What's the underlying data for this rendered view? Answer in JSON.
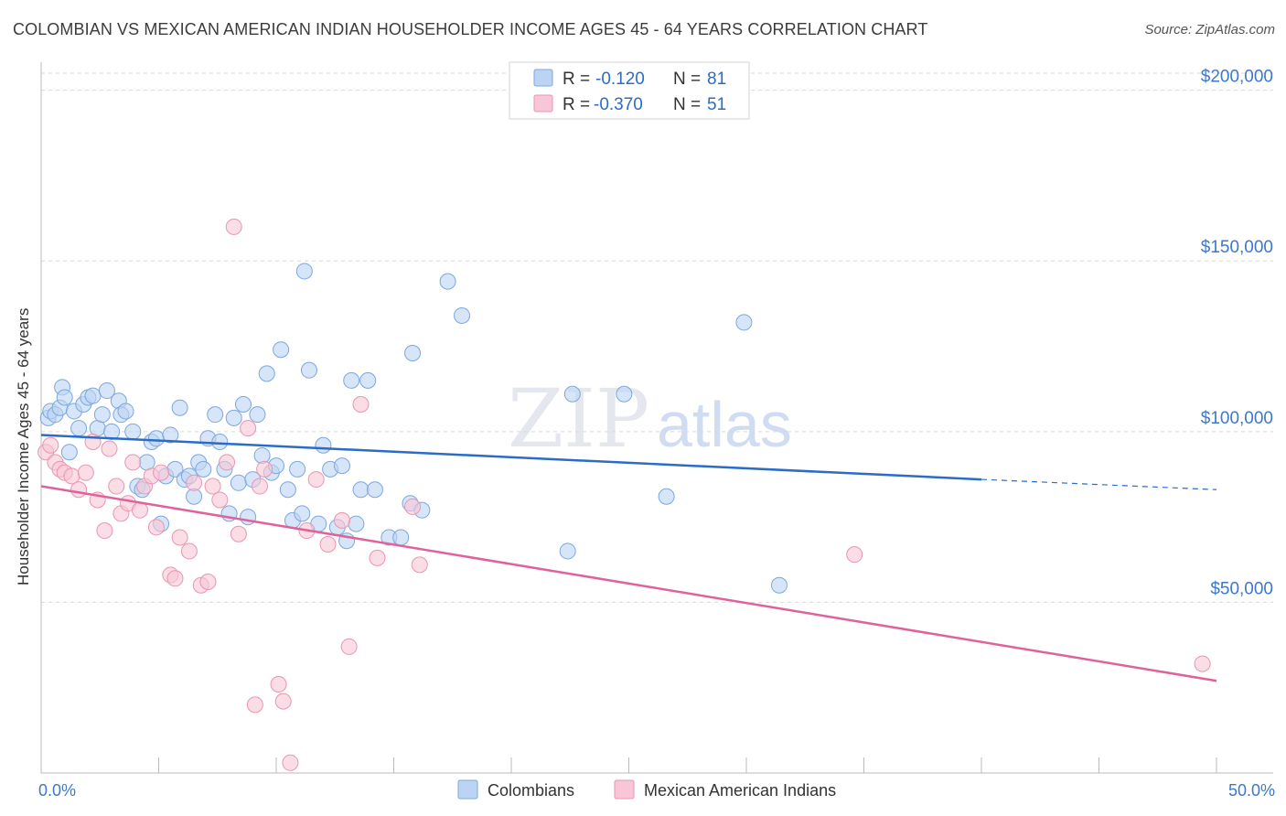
{
  "title": "COLOMBIAN VS MEXICAN AMERICAN INDIAN HOUSEHOLDER INCOME AGES 45 - 64 YEARS CORRELATION CHART",
  "source": "Source: ZipAtlas.com",
  "watermark": {
    "zip": "ZIP",
    "atlas": "atlas"
  },
  "colors": {
    "blue_fill": "#bcd4f4",
    "blue_stroke": "#7ba7e0",
    "blue_line": "#2b6cc8",
    "pink_fill": "#f8c6d6",
    "pink_stroke": "#e995b2",
    "pink_line": "#e0629a",
    "grid": "#d9d9d9",
    "axis_text": "#3d78c9",
    "legend_value": "#2b6cc8"
  },
  "legend": {
    "entries": [
      {
        "r_label": "R =",
        "r_value": "-0.120",
        "n_label": "N =",
        "n_value": "81"
      },
      {
        "r_label": "R =",
        "r_value": "-0.370",
        "n_label": "N =",
        "n_value": "51"
      }
    ]
  },
  "chart_data": {
    "type": "scatter",
    "title": "COLOMBIAN VS MEXICAN AMERICAN INDIAN HOUSEHOLDER INCOME AGES 45 - 64 YEARS CORRELATION CHART",
    "xlabel": "",
    "ylabel": "Householder Income Ages 45 - 64 years",
    "xlim": [
      0,
      50
    ],
    "ylim": [
      0,
      205000
    ],
    "x_tick_labels": [
      {
        "value": 0,
        "label": "0.0%"
      },
      {
        "value": 50,
        "label": "50.0%"
      }
    ],
    "y_ticks": [
      {
        "value": 50000,
        "label": "$50,000"
      },
      {
        "value": 100000,
        "label": "$100,000"
      },
      {
        "value": 150000,
        "label": "$150,000"
      },
      {
        "value": 200000,
        "label": "$200,000"
      }
    ],
    "x_minor_ticks": [
      5,
      10,
      15,
      20,
      25,
      30,
      35,
      40,
      45,
      50
    ],
    "series": [
      {
        "name": "Colombians",
        "color": "blue",
        "r": -0.12,
        "n": 81,
        "trend": {
          "x0": 0,
          "y0": 99000,
          "x1": 40,
          "y1": 86000,
          "dash_to_x": 50,
          "dash_to_y": 83000
        },
        "points": [
          [
            0.3,
            104000
          ],
          [
            0.4,
            106000
          ],
          [
            0.6,
            105000
          ],
          [
            0.8,
            107000
          ],
          [
            0.9,
            113000
          ],
          [
            1.0,
            110000
          ],
          [
            1.2,
            94000
          ],
          [
            1.4,
            106000
          ],
          [
            1.6,
            101000
          ],
          [
            1.8,
            108000
          ],
          [
            2.0,
            110000
          ],
          [
            2.2,
            110500
          ],
          [
            2.4,
            101000
          ],
          [
            2.6,
            105000
          ],
          [
            2.8,
            112000
          ],
          [
            3.0,
            100000
          ],
          [
            3.3,
            109000
          ],
          [
            3.4,
            105000
          ],
          [
            3.6,
            106000
          ],
          [
            3.9,
            100000
          ],
          [
            4.1,
            84000
          ],
          [
            4.3,
            83000
          ],
          [
            4.5,
            91000
          ],
          [
            4.7,
            97000
          ],
          [
            4.9,
            98000
          ],
          [
            5.1,
            73000
          ],
          [
            5.3,
            87000
          ],
          [
            5.5,
            99000
          ],
          [
            5.7,
            89000
          ],
          [
            5.9,
            107000
          ],
          [
            6.1,
            86000
          ],
          [
            6.3,
            87000
          ],
          [
            6.5,
            81000
          ],
          [
            6.7,
            91000
          ],
          [
            6.9,
            89000
          ],
          [
            7.1,
            98000
          ],
          [
            7.4,
            105000
          ],
          [
            7.6,
            97000
          ],
          [
            7.8,
            89000
          ],
          [
            8.0,
            76000
          ],
          [
            8.2,
            104000
          ],
          [
            8.4,
            85000
          ],
          [
            8.6,
            108000
          ],
          [
            8.8,
            75000
          ],
          [
            9.0,
            86000
          ],
          [
            9.2,
            105000
          ],
          [
            9.4,
            93000
          ],
          [
            9.6,
            117000
          ],
          [
            9.8,
            88000
          ],
          [
            10.0,
            90000
          ],
          [
            10.2,
            124000
          ],
          [
            10.5,
            83000
          ],
          [
            10.7,
            74000
          ],
          [
            10.9,
            89000
          ],
          [
            11.1,
            76000
          ],
          [
            11.4,
            118000
          ],
          [
            11.2,
            147000
          ],
          [
            11.8,
            73000
          ],
          [
            12.0,
            96000
          ],
          [
            12.3,
            89000
          ],
          [
            12.6,
            72000
          ],
          [
            12.8,
            90000
          ],
          [
            13.0,
            68000
          ],
          [
            13.2,
            115000
          ],
          [
            13.4,
            73000
          ],
          [
            13.6,
            83000
          ],
          [
            13.9,
            115000
          ],
          [
            14.2,
            83000
          ],
          [
            14.8,
            69000
          ],
          [
            15.3,
            69000
          ],
          [
            15.7,
            79000
          ],
          [
            15.8,
            123000
          ],
          [
            16.2,
            77000
          ],
          [
            17.3,
            144000
          ],
          [
            17.9,
            134000
          ],
          [
            22.4,
            65000
          ],
          [
            22.6,
            111000
          ],
          [
            24.8,
            111000
          ],
          [
            26.6,
            81000
          ],
          [
            29.9,
            132000
          ],
          [
            31.4,
            55000
          ]
        ]
      },
      {
        "name": "Mexican American Indians",
        "color": "pink",
        "r": -0.37,
        "n": 51,
        "trend": {
          "x0": 0,
          "y0": 84000,
          "x1": 50,
          "y1": 27000
        },
        "points": [
          [
            0.2,
            94000
          ],
          [
            0.4,
            96000
          ],
          [
            0.6,
            91000
          ],
          [
            0.8,
            89000
          ],
          [
            1.0,
            88000
          ],
          [
            1.3,
            87000
          ],
          [
            1.6,
            83000
          ],
          [
            1.9,
            88000
          ],
          [
            2.2,
            97000
          ],
          [
            2.4,
            80000
          ],
          [
            2.7,
            71000
          ],
          [
            2.9,
            95000
          ],
          [
            3.2,
            84000
          ],
          [
            3.4,
            76000
          ],
          [
            3.7,
            79000
          ],
          [
            3.9,
            91000
          ],
          [
            4.2,
            77000
          ],
          [
            4.4,
            84000
          ],
          [
            4.7,
            87000
          ],
          [
            4.9,
            72000
          ],
          [
            5.1,
            88000
          ],
          [
            5.5,
            58000
          ],
          [
            5.7,
            57000
          ],
          [
            5.9,
            69000
          ],
          [
            6.3,
            65000
          ],
          [
            6.5,
            85000
          ],
          [
            6.8,
            55000
          ],
          [
            7.1,
            56000
          ],
          [
            7.3,
            84000
          ],
          [
            7.6,
            80000
          ],
          [
            7.9,
            91000
          ],
          [
            8.2,
            160000
          ],
          [
            8.4,
            70000
          ],
          [
            8.8,
            101000
          ],
          [
            9.3,
            84000
          ],
          [
            9.5,
            89000
          ],
          [
            9.1,
            20000
          ],
          [
            10.1,
            26000
          ],
          [
            10.3,
            21000
          ],
          [
            10.6,
            3000
          ],
          [
            11.3,
            71000
          ],
          [
            11.7,
            86000
          ],
          [
            12.2,
            67000
          ],
          [
            12.8,
            74000
          ],
          [
            13.1,
            37000
          ],
          [
            13.6,
            108000
          ],
          [
            14.3,
            63000
          ],
          [
            15.8,
            78000
          ],
          [
            16.1,
            61000
          ],
          [
            34.6,
            64000
          ],
          [
            49.4,
            32000
          ]
        ]
      }
    ],
    "legend_position": "top-center",
    "bottom_legend": [
      "Colombians",
      "Mexican American Indians"
    ]
  }
}
